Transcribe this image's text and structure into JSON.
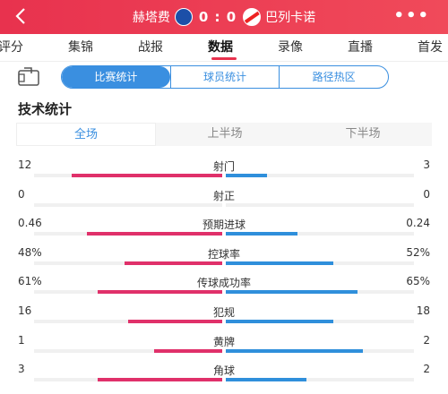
{
  "header": {
    "home_team": "赫塔费",
    "away_team": "巴列卡诺",
    "score": "0 : 0",
    "more_label": "•••",
    "accent": "#e8324e"
  },
  "tabs": [
    "评分",
    "集锦",
    "战报",
    "数据",
    "录像",
    "直播",
    "首发"
  ],
  "active_tab": "数据",
  "segment": {
    "items": [
      "比赛统计",
      "球员统计",
      "路径热区"
    ],
    "active": "比赛统计"
  },
  "section_title": "技术统计",
  "period": {
    "items": [
      "全场",
      "上半场",
      "下半场"
    ],
    "active": "全场"
  },
  "stats": [
    {
      "label": "射门",
      "home": "12",
      "away": "3",
      "home_frac": 0.8,
      "away_frac": 0.22
    },
    {
      "label": "射正",
      "home": "0",
      "away": "0",
      "home_frac": 0.0,
      "away_frac": 0.0
    },
    {
      "label": "预期进球",
      "home": "0.46",
      "away": "0.24",
      "home_frac": 0.72,
      "away_frac": 0.38
    },
    {
      "label": "控球率",
      "home": "48%",
      "away": "52%",
      "home_frac": 0.52,
      "away_frac": 0.57
    },
    {
      "label": "传球成功率",
      "home": "61%",
      "away": "65%",
      "home_frac": 0.66,
      "away_frac": 0.7
    },
    {
      "label": "犯规",
      "home": "16",
      "away": "18",
      "home_frac": 0.5,
      "away_frac": 0.57
    },
    {
      "label": "黄牌",
      "home": "1",
      "away": "2",
      "home_frac": 0.36,
      "away_frac": 0.73
    },
    {
      "label": "角球",
      "home": "3",
      "away": "2",
      "home_frac": 0.66,
      "away_frac": 0.43
    }
  ],
  "colors": {
    "home_bar": "#e0306a",
    "away_bar": "#2f8fdb",
    "seg_blue": "#3a8fe0"
  }
}
